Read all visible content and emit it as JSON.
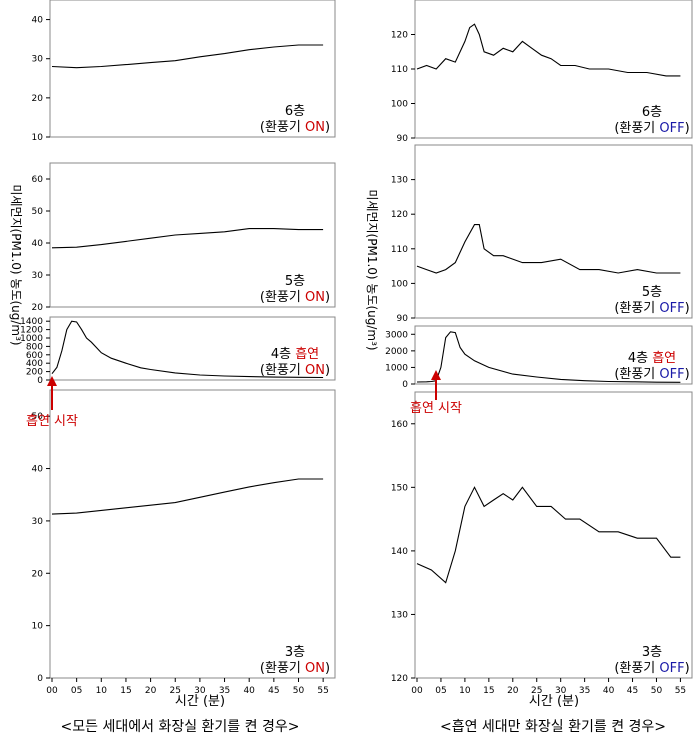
{
  "figure": {
    "captions": [
      "<모든 세대에서 화장실 환기를 켠 경우>",
      "<흡연 세대만 화장실 환기를 켠 경우>"
    ],
    "ylabel": "미세먼지(PM1.0) 농도(ug/m³)",
    "xlabel": "시간 (분)",
    "smoking_start": "흡연 시작",
    "colors": {
      "line": "#000000",
      "accent_red": "#cc0000",
      "accent_blue": "#1a1aa8",
      "border": "#888888"
    }
  },
  "chart_data": [
    {
      "type": "line",
      "panel": "left-6F",
      "floor_label": "6층",
      "vent_prefix": "(환풍기 ",
      "vent_state": "ON",
      "vent_suffix": ")",
      "vent_color": "red",
      "smoking_label": "",
      "ylim": [
        10,
        45
      ],
      "yticks": [
        10,
        20,
        30,
        40
      ],
      "xlim": [
        0,
        57
      ],
      "x": [
        0,
        5,
        10,
        15,
        20,
        25,
        30,
        35,
        40,
        45,
        50,
        55
      ],
      "y": [
        28,
        27.7,
        28,
        28.5,
        29,
        29.5,
        30.5,
        31.3,
        32.3,
        33,
        33.5,
        33.5
      ]
    },
    {
      "type": "line",
      "panel": "left-5F",
      "floor_label": "5층",
      "vent_prefix": "(환풍기 ",
      "vent_state": "ON",
      "vent_suffix": ")",
      "vent_color": "red",
      "smoking_label": "",
      "ylim": [
        20,
        65
      ],
      "yticks": [
        20,
        30,
        40,
        50,
        60
      ],
      "xlim": [
        0,
        57
      ],
      "x": [
        0,
        5,
        10,
        15,
        20,
        25,
        30,
        35,
        40,
        45,
        50,
        55
      ],
      "y": [
        38.5,
        38.7,
        39.5,
        40.5,
        41.5,
        42.5,
        43,
        43.5,
        44.5,
        44.5,
        44.2,
        44.2
      ]
    },
    {
      "type": "line",
      "panel": "left-4F",
      "floor_label": "4층 ",
      "vent_prefix": "(환풍기 ",
      "vent_state": "ON",
      "vent_suffix": ")",
      "vent_color": "red",
      "smoking_label": "흡연",
      "ylim": [
        0,
        1500
      ],
      "yticks": [
        0,
        200,
        400,
        600,
        800,
        1000,
        1200,
        1400
      ],
      "xlim": [
        0,
        57
      ],
      "x": [
        0,
        1,
        2,
        3,
        4,
        5,
        6,
        7,
        8,
        10,
        12,
        15,
        18,
        20,
        25,
        30,
        35,
        40,
        45,
        50,
        55
      ],
      "y": [
        150,
        300,
        700,
        1200,
        1400,
        1380,
        1200,
        1000,
        900,
        650,
        520,
        400,
        290,
        250,
        170,
        120,
        95,
        80,
        70,
        65,
        60
      ]
    },
    {
      "type": "line",
      "panel": "left-3F",
      "floor_label": "3층",
      "vent_prefix": "(환풍기 ",
      "vent_state": "ON",
      "vent_suffix": ")",
      "vent_color": "red",
      "smoking_label": "",
      "ylim": [
        0,
        55
      ],
      "yticks": [
        0,
        10,
        20,
        30,
        40,
        50
      ],
      "xlim": [
        0,
        57
      ],
      "xticks": [
        "00",
        "05",
        "10",
        "15",
        "20",
        "25",
        "30",
        "35",
        "40",
        "45",
        "50",
        "55"
      ],
      "x": [
        0,
        5,
        10,
        15,
        20,
        25,
        30,
        35,
        40,
        45,
        50,
        55
      ],
      "y": [
        31.3,
        31.5,
        32,
        32.5,
        33,
        33.5,
        34.5,
        35.5,
        36.5,
        37.3,
        38,
        38
      ]
    },
    {
      "type": "line",
      "panel": "right-6F",
      "floor_label": "6층",
      "vent_prefix": "(환풍기 ",
      "vent_state": "OFF",
      "vent_suffix": ")",
      "vent_color": "blue",
      "smoking_label": "",
      "ylim": [
        90,
        130
      ],
      "yticks": [
        90,
        100,
        110,
        120
      ],
      "xlim": [
        0,
        57
      ],
      "x": [
        0,
        2,
        4,
        6,
        8,
        10,
        11,
        12,
        13,
        14,
        16,
        18,
        20,
        22,
        24,
        26,
        28,
        30,
        33,
        36,
        40,
        44,
        48,
        52,
        55
      ],
      "y": [
        110,
        111,
        110,
        113,
        112,
        118,
        122,
        123,
        120,
        115,
        114,
        116,
        115,
        118,
        116,
        114,
        113,
        111,
        111,
        110,
        110,
        109,
        109,
        108,
        108
      ]
    },
    {
      "type": "line",
      "panel": "right-5F",
      "floor_label": "5층",
      "vent_prefix": "(환풍기 ",
      "vent_state": "OFF",
      "vent_suffix": ")",
      "vent_color": "blue",
      "smoking_label": "",
      "ylim": [
        90,
        140
      ],
      "yticks": [
        90,
        100,
        110,
        120,
        130
      ],
      "xlim": [
        0,
        57
      ],
      "x": [
        0,
        2,
        4,
        6,
        8,
        10,
        12,
        13,
        14,
        16,
        18,
        22,
        26,
        30,
        34,
        38,
        42,
        46,
        50,
        53,
        55
      ],
      "y": [
        105,
        104,
        103,
        104,
        106,
        112,
        117,
        117,
        110,
        108,
        108,
        106,
        106,
        107,
        104,
        104,
        103,
        104,
        103,
        103,
        103
      ]
    },
    {
      "type": "line",
      "panel": "right-4F",
      "floor_label": "4층 ",
      "vent_prefix": "(환풍기 ",
      "vent_state": "OFF",
      "vent_suffix": ")",
      "vent_color": "blue",
      "smoking_label": "흡연",
      "ylim": [
        0,
        3500
      ],
      "yticks": [
        0,
        1000,
        2000,
        3000
      ],
      "xlim": [
        0,
        57
      ],
      "x": [
        0,
        2,
        3,
        4,
        5,
        6,
        7,
        8,
        9,
        10,
        12,
        15,
        20,
        25,
        30,
        35,
        40,
        45,
        50,
        55
      ],
      "y": [
        120,
        130,
        150,
        200,
        1000,
        2800,
        3150,
        3100,
        2200,
        1800,
        1400,
        1000,
        600,
        420,
        280,
        200,
        150,
        130,
        110,
        100
      ]
    },
    {
      "type": "line",
      "panel": "right-3F",
      "floor_label": "3층",
      "vent_prefix": "(환풍기 ",
      "vent_state": "OFF",
      "vent_suffix": ")",
      "vent_color": "blue",
      "smoking_label": "",
      "ylim": [
        120,
        165
      ],
      "yticks": [
        120,
        130,
        140,
        150,
        160
      ],
      "xlim": [
        0,
        57
      ],
      "xticks": [
        "00",
        "05",
        "10",
        "15",
        "20",
        "25",
        "30",
        "35",
        "40",
        "45",
        "50",
        "55"
      ],
      "x": [
        0,
        3,
        6,
        8,
        10,
        12,
        14,
        16,
        18,
        20,
        22,
        25,
        28,
        31,
        34,
        38,
        42,
        46,
        50,
        53,
        55
      ],
      "y": [
        138,
        137,
        135,
        140,
        147,
        150,
        147,
        148,
        149,
        148,
        150,
        147,
        147,
        145,
        145,
        143,
        143,
        142,
        142,
        139,
        139
      ]
    }
  ]
}
